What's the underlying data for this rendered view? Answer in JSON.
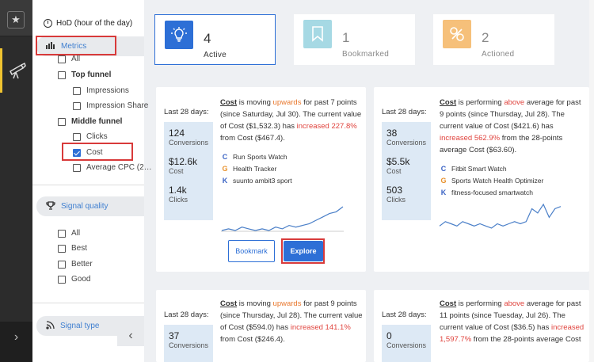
{
  "rail": {
    "star_icon": "star-icon",
    "telescope_icon": "telescope-icon",
    "expand_label": "›"
  },
  "filters": {
    "hod_label": "HoD (hour of the day)",
    "metrics_label": "Metrics",
    "items": [
      {
        "label": "All",
        "checked": false
      },
      {
        "label": "Top funnel",
        "checked": false
      },
      {
        "label": "Impressions",
        "checked": false
      },
      {
        "label": "Impression Share",
        "checked": false
      },
      {
        "label": "Middle funnel",
        "checked": false
      },
      {
        "label": "Clicks",
        "checked": false
      },
      {
        "label": "Cost",
        "checked": true
      },
      {
        "label": "Average CPC (2…",
        "checked": false
      }
    ],
    "signal_quality_label": "Signal quality",
    "quality_items": [
      "All",
      "Best",
      "Better",
      "Good"
    ],
    "signal_type_label": "Signal type",
    "collapse_label": "‹"
  },
  "stats": [
    {
      "count": "4",
      "label": "Active",
      "color": "#2d6fd6",
      "icon": "lightbulb-icon"
    },
    {
      "count": "1",
      "label": "Bookmarked",
      "color": "#a6d9e4",
      "icon": "bookmark-icon"
    },
    {
      "count": "2",
      "label": "Actioned",
      "color": "#f6c07a",
      "icon": "actioned-icon"
    }
  ],
  "cards": [
    {
      "period": "Last 28 days:",
      "metrics": [
        {
          "value": "124",
          "name": "Conversions"
        },
        {
          "value": "$12.6k",
          "name": "Cost"
        },
        {
          "value": "1.4k",
          "name": "Clicks"
        }
      ],
      "text": {
        "metric": "Cost",
        "p1": " is moving ",
        "trend": "upwards",
        "p2": " for past 7 points (since Saturday, Jul 30). The current value of Cost ($1,532.3) has ",
        "change": "increased 227.8%",
        "p3": " from Cost ($467.4)."
      },
      "sources": [
        {
          "glyph": "C",
          "label": "Run Sports Watch"
        },
        {
          "glyph": "G",
          "label": "Health Tracker"
        },
        {
          "glyph": "K",
          "label": "suunto ambit3 sport"
        }
      ],
      "bookmark_label": "Bookmark",
      "explore_label": "Explore",
      "spark": [
        2,
        2.5,
        2,
        3,
        2.5,
        2,
        2.5,
        2,
        3,
        2.5,
        3.5,
        3,
        3.5,
        4,
        5,
        6,
        7,
        7.5,
        9
      ]
    },
    {
      "period": "Last 28 days:",
      "metrics": [
        {
          "value": "38",
          "name": "Conversions"
        },
        {
          "value": "$5.5k",
          "name": "Cost"
        },
        {
          "value": "503",
          "name": "Clicks"
        }
      ],
      "text": {
        "metric": "Cost",
        "p1": " is performing ",
        "trend": "above",
        "p2": " average for past 9 points (since Thursday, Jul 28). The current value of Cost ($421.6) has ",
        "change": "increased 562.9%",
        "p3": " from the 28-points average Cost ($63.60)."
      },
      "sources": [
        {
          "glyph": "C",
          "label": "Fitbit Smart Watch"
        },
        {
          "glyph": "G",
          "label": "Sports Watch Health Optimizer"
        },
        {
          "glyph": "K",
          "label": "fitness-focused smartwatch"
        }
      ],
      "spark": [
        2,
        3,
        2.5,
        2,
        3,
        2.5,
        2,
        2.5,
        2,
        1.5,
        2.5,
        2,
        2.5,
        3,
        2.5,
        3,
        6,
        5,
        7,
        4,
        6,
        6.5
      ]
    },
    {
      "period": "Last 28 days:",
      "metrics": [
        {
          "value": "37",
          "name": "Conversions"
        }
      ],
      "text": {
        "metric": "Cost",
        "p1": " is moving ",
        "trend": "upwards",
        "p2": " for past 9 points (since Thursday, Jul 28). The current value of Cost ($594.0) has ",
        "change": "increased 141.1%",
        "p3": " from Cost ($246.4)."
      }
    },
    {
      "period": "Last 28 days:",
      "metrics": [
        {
          "value": "0",
          "name": "Conversions"
        }
      ],
      "text": {
        "metric": "Cost",
        "p1": " is performing ",
        "trend": "above",
        "p2": " average for past 11 points (since Tuesday, Jul 26). The current value of Cost ($36.5) has ",
        "change": "increased 1,597.7%",
        "p3": " from the 28-points average Cost"
      }
    }
  ]
}
